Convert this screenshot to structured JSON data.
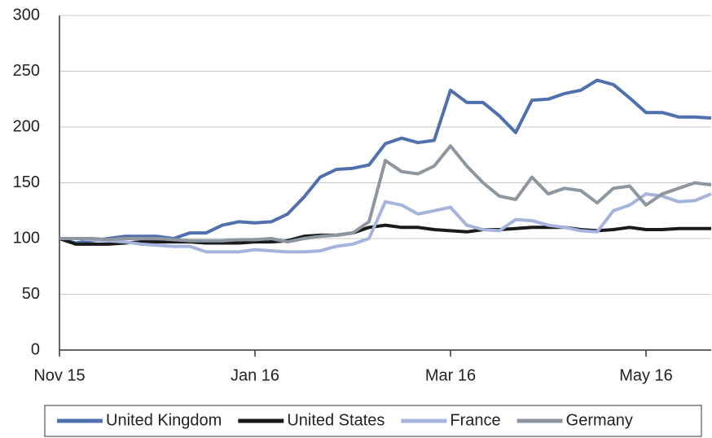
{
  "chart_data": {
    "type": "line",
    "categories": [
      "Nov 15",
      null,
      null,
      null,
      null,
      null,
      null,
      null,
      null,
      null,
      null,
      null,
      "Jan 16",
      null,
      null,
      null,
      null,
      null,
      null,
      null,
      null,
      null,
      null,
      null,
      "Mar 16",
      null,
      null,
      null,
      null,
      null,
      null,
      null,
      null,
      null,
      null,
      null,
      "May 16",
      null,
      null,
      null,
      null
    ],
    "series": [
      {
        "name": "United Kingdom",
        "color": "#4f6fad",
        "values": [
          100,
          96,
          98,
          100,
          102,
          102,
          102,
          100,
          105,
          105,
          112,
          115,
          114,
          115,
          122,
          137,
          155,
          162,
          163,
          166,
          185,
          190,
          186,
          188,
          233,
          222,
          222,
          210,
          195,
          224,
          225,
          230,
          233,
          242,
          238,
          226,
          213,
          213,
          209,
          209,
          208
        ]
      },
      {
        "name": "United States",
        "color": "#1a1a1a",
        "values": [
          100,
          95,
          95,
          95,
          96,
          97,
          97,
          97,
          97,
          96,
          96,
          96,
          97,
          97,
          98,
          102,
          103,
          103,
          105,
          110,
          112,
          110,
          110,
          108,
          107,
          106,
          108,
          108,
          109,
          110,
          110,
          110,
          108,
          107,
          108,
          110,
          108,
          108,
          109,
          109,
          109
        ]
      },
      {
        "name": "France",
        "color": "#a6b3dc",
        "values": [
          100,
          100,
          99,
          98,
          97,
          95,
          94,
          93,
          93,
          88,
          88,
          88,
          90,
          89,
          88,
          88,
          89,
          93,
          95,
          100,
          133,
          130,
          122,
          125,
          128,
          112,
          108,
          107,
          117,
          116,
          112,
          110,
          107,
          106,
          125,
          130,
          140,
          138,
          133,
          134,
          140
        ]
      },
      {
        "name": "Germany",
        "color": "#8e96a0",
        "values": [
          100,
          100,
          100,
          99,
          100,
          100,
          100,
          99,
          98,
          98,
          98,
          99,
          99,
          100,
          97,
          100,
          102,
          103,
          105,
          115,
          170,
          160,
          158,
          165,
          183,
          165,
          150,
          138,
          135,
          155,
          140,
          145,
          143,
          132,
          145,
          147,
          130,
          140,
          145,
          150,
          148
        ]
      }
    ],
    "ylim": [
      0,
      300
    ],
    "yticks": [
      0,
      50,
      100,
      150,
      200,
      250,
      300
    ],
    "grid": true,
    "legend": "bottom"
  }
}
